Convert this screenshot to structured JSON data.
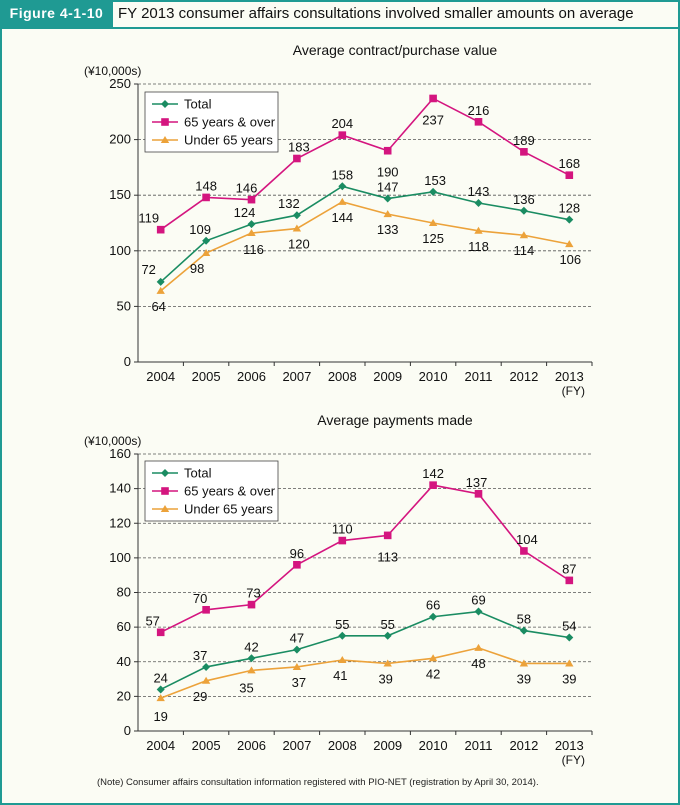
{
  "figure": {
    "label": "Figure 4-1-10",
    "title": "FY 2013 consumer affairs consultations involved smaller amounts on average",
    "note": "(Note) Consumer affairs consultation information registered with PIO-NET (registration by April 30, 2014)."
  },
  "colors": {
    "accent": "#1f9a93",
    "total": "#1a8c62",
    "over65": "#d4157f",
    "under65": "#eca23a"
  },
  "chart_data": [
    {
      "type": "line",
      "title": "Average contract/purchase value",
      "ylabel": "(¥10,000s)",
      "xunit": "(FY)",
      "ylim": [
        0,
        250
      ],
      "yticks": [
        0,
        50,
        100,
        150,
        200,
        250
      ],
      "categories": [
        "2004",
        "2005",
        "2006",
        "2007",
        "2008",
        "2009",
        "2010",
        "2011",
        "2012",
        "2013"
      ],
      "series": [
        {
          "name": "Total",
          "values": [
            72,
            109,
            124,
            132,
            158,
            147,
            153,
            143,
            136,
            128
          ]
        },
        {
          "name": "65 years & over",
          "values": [
            119,
            148,
            146,
            183,
            204,
            190,
            237,
            216,
            189,
            168
          ]
        },
        {
          "name": "Under 65 years",
          "values": [
            64,
            98,
            116,
            120,
            144,
            133,
            125,
            118,
            114,
            106
          ]
        }
      ],
      "legend": "top-left",
      "grid": "dotted horizontal"
    },
    {
      "type": "line",
      "title": "Average payments made",
      "ylabel": "(¥10,000s)",
      "xunit": "(FY)",
      "ylim": [
        0,
        160
      ],
      "yticks": [
        0,
        20,
        40,
        60,
        80,
        100,
        120,
        140,
        160
      ],
      "categories": [
        "2004",
        "2005",
        "2006",
        "2007",
        "2008",
        "2009",
        "2010",
        "2011",
        "2012",
        "2013"
      ],
      "series": [
        {
          "name": "Total",
          "values": [
            24,
            37,
            42,
            47,
            55,
            55,
            66,
            69,
            58,
            54
          ]
        },
        {
          "name": "65 years & over",
          "values": [
            57,
            70,
            73,
            96,
            110,
            113,
            142,
            137,
            104,
            87
          ]
        },
        {
          "name": "Under 65 years",
          "values": [
            19,
            29,
            35,
            37,
            41,
            39,
            42,
            48,
            39,
            39
          ]
        }
      ],
      "legend": "top-left",
      "grid": "dotted horizontal"
    }
  ]
}
